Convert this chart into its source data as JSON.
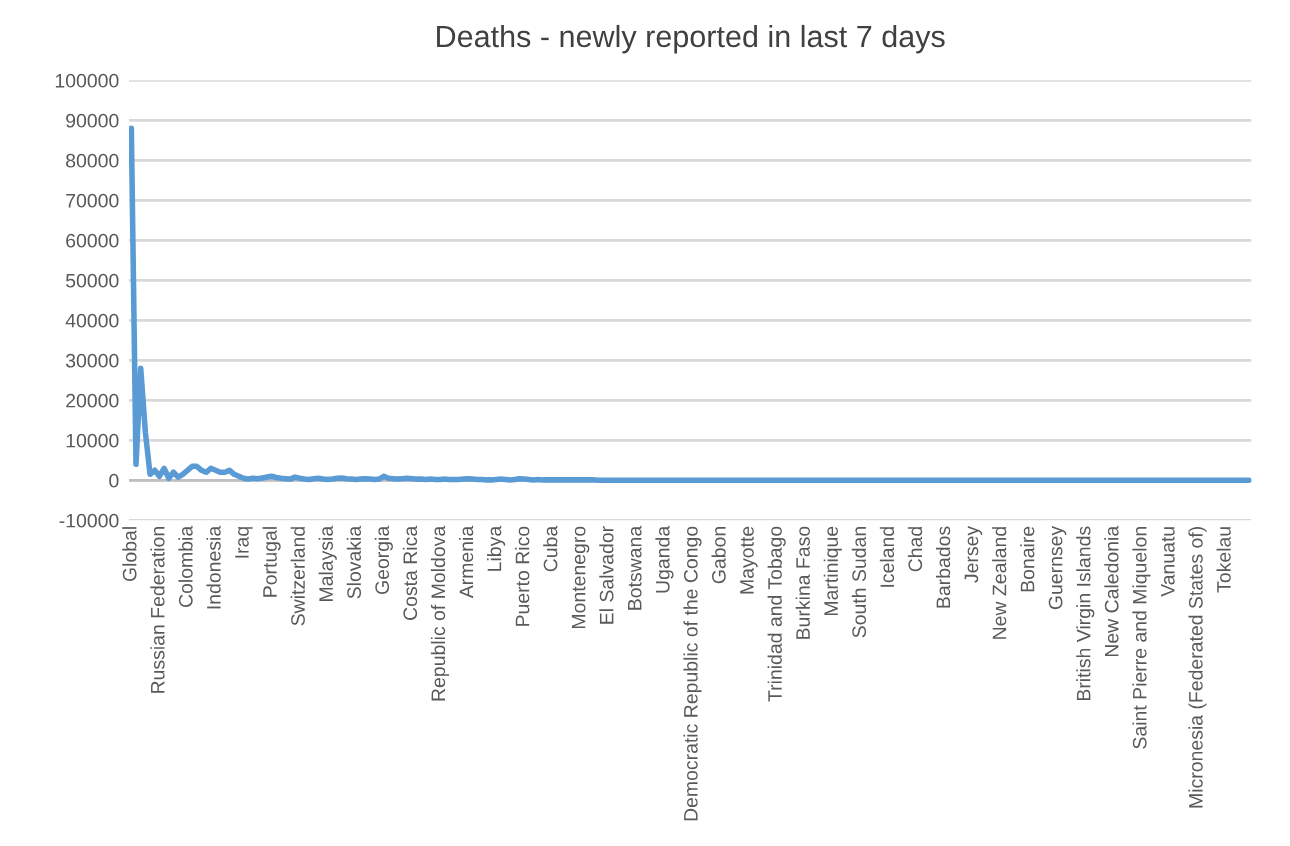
{
  "chart_data": {
    "type": "line",
    "title": "Deaths - newly reported in last 7 days",
    "categories": [
      "Global",
      null,
      null,
      null,
      null,
      null,
      "Russian Federation",
      null,
      null,
      null,
      null,
      null,
      "Colombia",
      null,
      null,
      null,
      null,
      null,
      "Indonesia",
      null,
      null,
      null,
      null,
      null,
      "Iraq",
      null,
      null,
      null,
      null,
      null,
      "Portugal",
      null,
      null,
      null,
      null,
      null,
      "Switzerland",
      null,
      null,
      null,
      null,
      null,
      "Malaysia",
      null,
      null,
      null,
      null,
      null,
      "Slovakia",
      null,
      null,
      null,
      null,
      null,
      "Georgia",
      null,
      null,
      null,
      null,
      null,
      "Costa Rica",
      null,
      null,
      null,
      null,
      null,
      "Republic of Moldova",
      null,
      null,
      null,
      null,
      null,
      "Armenia",
      null,
      null,
      null,
      null,
      null,
      "Libya",
      null,
      null,
      null,
      null,
      null,
      "Puerto Rico",
      null,
      null,
      null,
      null,
      null,
      "Cuba",
      null,
      null,
      null,
      null,
      null,
      "Montenegro",
      null,
      null,
      null,
      null,
      null,
      "El Salvador",
      null,
      null,
      null,
      null,
      null,
      "Botswana",
      null,
      null,
      null,
      null,
      null,
      "Uganda",
      null,
      null,
      null,
      null,
      null,
      "Democratic Republic of the Congo",
      null,
      null,
      null,
      null,
      null,
      "Gabon",
      null,
      null,
      null,
      null,
      null,
      "Mayotte",
      null,
      null,
      null,
      null,
      null,
      "Trinidad and Tobago",
      null,
      null,
      null,
      null,
      null,
      "Burkina Faso",
      null,
      null,
      null,
      null,
      null,
      "Martinique",
      null,
      null,
      null,
      null,
      null,
      "South Sudan",
      null,
      null,
      null,
      null,
      null,
      "Iceland",
      null,
      null,
      null,
      null,
      null,
      "Chad",
      null,
      null,
      null,
      null,
      null,
      "Barbados",
      null,
      null,
      null,
      null,
      null,
      "Jersey",
      null,
      null,
      null,
      null,
      null,
      "New Zealand",
      null,
      null,
      null,
      null,
      null,
      "Bonaire",
      null,
      null,
      null,
      null,
      null,
      "Guernsey",
      null,
      null,
      null,
      null,
      null,
      "British Virgin Islands",
      null,
      null,
      null,
      null,
      null,
      "New Caledonia",
      null,
      null,
      null,
      null,
      null,
      "Saint Pierre and Miquelon",
      null,
      null,
      null,
      null,
      null,
      "Vanuatu",
      null,
      null,
      null,
      null,
      null,
      "Micronesia (Federated States of)",
      null,
      null,
      null,
      null,
      null,
      "Tokelau",
      null,
      null,
      null,
      null,
      null
    ],
    "series": [
      {
        "color": "#5b9bd5",
        "values": [
          88000,
          4000,
          28000,
          12000,
          1500,
          2500,
          1000,
          3000,
          500,
          2000,
          800,
          1500,
          2500,
          3500,
          3500,
          2500,
          2000,
          3000,
          2500,
          2000,
          2000,
          2500,
          1500,
          1000,
          500,
          300,
          500,
          400,
          600,
          800,
          1000,
          700,
          500,
          400,
          300,
          800,
          500,
          300,
          200,
          400,
          500,
          300,
          200,
          300,
          500,
          600,
          400,
          300,
          200,
          300,
          400,
          300,
          200,
          300,
          1000,
          500,
          400,
          300,
          400,
          500,
          400,
          300,
          300,
          200,
          300,
          200,
          200,
          300,
          200,
          200,
          200,
          300,
          400,
          300,
          200,
          200,
          100,
          100,
          200,
          300,
          200,
          100,
          200,
          400,
          300,
          200,
          100,
          200,
          100,
          100,
          100,
          100,
          100,
          100,
          100,
          100,
          100,
          100,
          100,
          100,
          0,
          0,
          0,
          0,
          0,
          0,
          0,
          0,
          0,
          0,
          0,
          0,
          0,
          0,
          0,
          0,
          0,
          0,
          0,
          0,
          0,
          0,
          0,
          0,
          0,
          0,
          0,
          0,
          0,
          0,
          0,
          0,
          0,
          0,
          0,
          0,
          0,
          0,
          0,
          0,
          0,
          0,
          0,
          0,
          0,
          0,
          0,
          0,
          0,
          0,
          0,
          0,
          0,
          0,
          0,
          0,
          0,
          0,
          0,
          0,
          0,
          0,
          0,
          0,
          0,
          0,
          0,
          0,
          0,
          0,
          0,
          0,
          0,
          0,
          0,
          0,
          0,
          0,
          0,
          0,
          0,
          0,
          0,
          0,
          0,
          0,
          0,
          0,
          0,
          0,
          0,
          0,
          0,
          0,
          0,
          0,
          0,
          0,
          0,
          0,
          0,
          0,
          0,
          0,
          0,
          0,
          0,
          0,
          0,
          0,
          0,
          0,
          0,
          0,
          0,
          0,
          0,
          0,
          0,
          0,
          0,
          0,
          0,
          0,
          0,
          0,
          0,
          0,
          0,
          0,
          0,
          0,
          0,
          0,
          0,
          0,
          0,
          0,
          0,
          0
        ]
      }
    ],
    "ylim": [
      -10000,
      100000
    ],
    "yticks": [
      -10000,
      0,
      10000,
      20000,
      30000,
      40000,
      50000,
      60000,
      70000,
      80000,
      90000,
      100000
    ],
    "grid": "y"
  }
}
